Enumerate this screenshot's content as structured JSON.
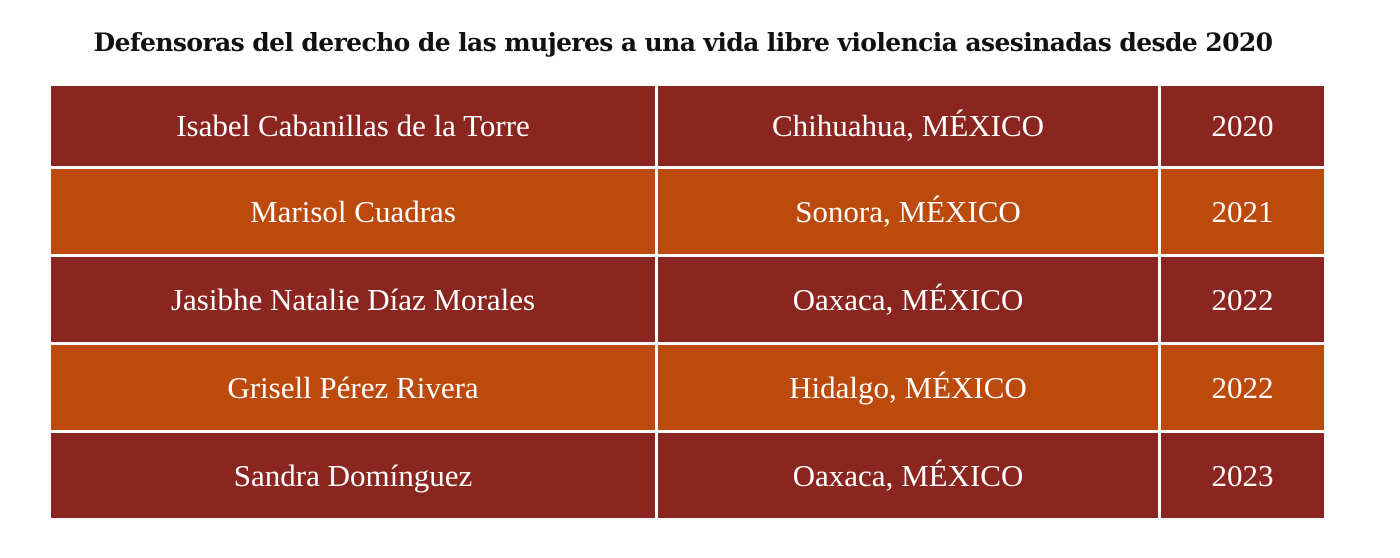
{
  "title": "Defensoras del derecho de las mujeres a una vida libre violencia asesinadas desde 2020",
  "colors": {
    "row_dark": "#8b2520",
    "row_orange": "#bb4a0c",
    "text": "#ffffff",
    "divider": "#ffffff"
  },
  "rows": [
    {
      "name": "Isabel Cabanillas de la Torre",
      "place": "Chihuahua, MÉXICO",
      "year": "2020",
      "tone": "dark"
    },
    {
      "name": "Marisol Cuadras",
      "place": "Sonora, MÉXICO",
      "year": "2021",
      "tone": "orange"
    },
    {
      "name": "Jasibhe Natalie Díaz Morales",
      "place": "Oaxaca, MÉXICO",
      "year": "2022",
      "tone": "dark"
    },
    {
      "name": "Grisell Pérez Rivera",
      "place": "Hidalgo, MÉXICO",
      "year": "2022",
      "tone": "orange"
    },
    {
      "name": "Sandra Domínguez",
      "place": "Oaxaca, MÉXICO",
      "year": "2023",
      "tone": "dark"
    }
  ]
}
